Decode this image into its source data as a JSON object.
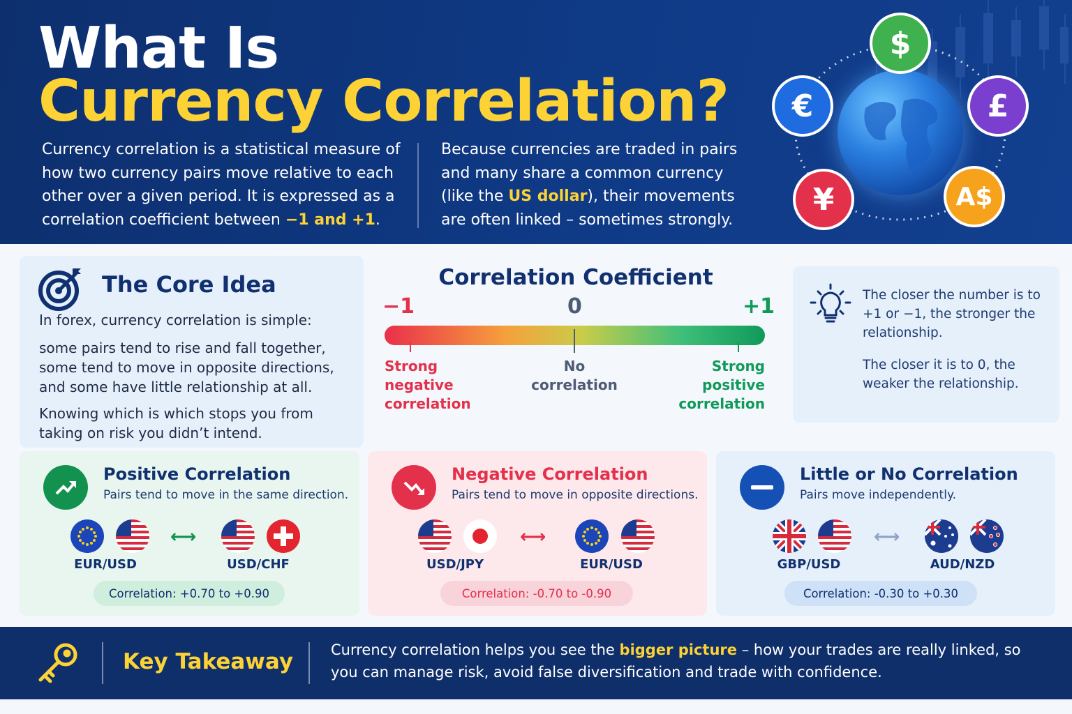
{
  "colors": {
    "navy": "#0f2f6b",
    "yellow": "#fcd235",
    "green": "#0f9a5a",
    "red": "#e3304b",
    "blue": "#1550b5"
  },
  "header": {
    "title_line1": "What Is",
    "title_line2": "Currency Correlation?",
    "intro_left_a": "Currency correlation is a statistical measure of how two currency pairs move relative to each other over a given period. It is expressed as a correlation coefficient between",
    "intro_left_hl": "−1 and +1",
    "intro_left_b": ".",
    "intro_right_a": "Because currencies are traded in pairs and many share a common currency (like the",
    "intro_right_hl": "US dollar",
    "intro_right_b": "), their movements are often linked – sometimes strongly.",
    "coins": {
      "dollar": "$",
      "euro": "€",
      "pound": "£",
      "yen": "¥",
      "aud": "A$"
    }
  },
  "core": {
    "title": "The Core Idea",
    "p1": "In forex, currency correlation is simple:",
    "p2": "some pairs tend to rise and fall together, some tend to move in opposite directions, and some have little relationship at all.",
    "p3": "Knowing which is which stops you from taking on risk you didn’t intend.",
    "icon": "target-icon"
  },
  "coefficient": {
    "title": "Correlation Coefficient",
    "min": "−1",
    "mid": "0",
    "max": "+1",
    "label_min": "Strong negative correlation",
    "label_mid": "No correlation",
    "label_max": "Strong positive correlation"
  },
  "tip": {
    "p1": "The closer the number is to +1 or −1, the stronger the relationship.",
    "p2": "The closer it is to 0, the weaker the relationship.",
    "icon": "lightbulb-icon"
  },
  "positive": {
    "title": "Positive Correlation",
    "subtitle": "Pairs tend to move in the same direction.",
    "pair_a": "EUR/USD",
    "pair_b": "USD/CHF",
    "arrow": "⟷",
    "range": "Correlation: +0.70 to +0.90"
  },
  "negative": {
    "title": "Negative Correlation",
    "subtitle": "Pairs tend to move in opposite directions.",
    "pair_a": "USD/JPY",
    "pair_b": "EUR/USD",
    "arrow": "⟷",
    "range": "Correlation: -0.70 to -0.90"
  },
  "none": {
    "title": "Little or No Correlation",
    "subtitle": "Pairs move independently.",
    "pair_a": "GBP/USD",
    "pair_b": "AUD/NZD",
    "arrow": "⟷",
    "range": "Correlation: -0.30 to +0.30"
  },
  "footer": {
    "title": "Key Takeaway",
    "text_a": "Currency correlation helps you see the",
    "text_hl": "bigger picture",
    "text_b": "– how your trades are really linked, so you can manage risk, avoid false diversification and trade with confidence.",
    "icon": "key-icon"
  }
}
